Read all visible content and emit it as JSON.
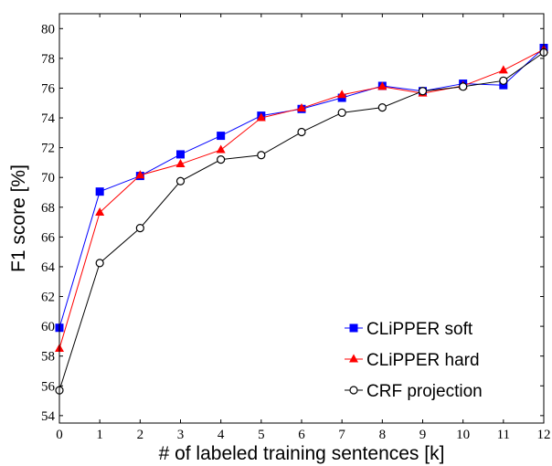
{
  "chart_data": {
    "type": "line",
    "xlabel": "# of labeled training sentences [k]",
    "ylabel": "F1 score [%]",
    "xlim": [
      0,
      12
    ],
    "ylim": [
      53.5,
      81
    ],
    "x_ticks": [
      0,
      1,
      2,
      3,
      4,
      5,
      6,
      7,
      8,
      9,
      10,
      11,
      12
    ],
    "y_ticks": [
      54,
      56,
      58,
      60,
      62,
      64,
      66,
      68,
      70,
      72,
      74,
      76,
      78,
      80
    ],
    "grid": false,
    "legend_position": "bottom-right",
    "x": [
      0,
      1,
      2,
      3,
      4,
      5,
      6,
      7,
      8,
      9,
      10,
      11,
      12
    ],
    "series": [
      {
        "name": "CLiPPER soft",
        "color": "#0000ff",
        "marker": "square",
        "values": [
          59.9,
          69.05,
          70.1,
          71.55,
          72.8,
          74.15,
          74.6,
          75.35,
          76.15,
          75.8,
          76.3,
          76.2,
          78.7
        ]
      },
      {
        "name": "CLiPPER hard",
        "color": "#ff0000",
        "marker": "triangle",
        "values": [
          58.5,
          67.65,
          70.15,
          70.9,
          71.85,
          74.0,
          74.65,
          75.55,
          76.1,
          75.65,
          76.15,
          77.2,
          78.6
        ]
      },
      {
        "name": "CRF projection",
        "color": "#000000",
        "marker": "circle",
        "values": [
          55.7,
          64.25,
          66.6,
          69.75,
          71.2,
          71.5,
          73.05,
          74.35,
          74.7,
          75.8,
          76.1,
          76.5,
          78.4
        ]
      }
    ]
  }
}
